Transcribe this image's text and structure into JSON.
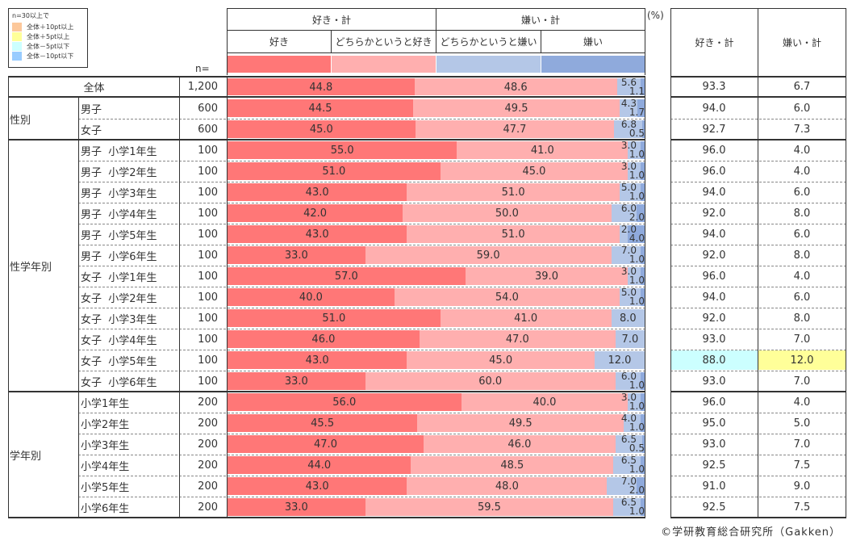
{
  "legend": {
    "title": "n=30以上で",
    "items": [
      {
        "label": "全体＋10pt以上",
        "color": "#fcc89b"
      },
      {
        "label": "全体＋5pt以上",
        "color": "#ffff99"
      },
      {
        "label": "全体－5pt以下",
        "color": "#ccffff"
      },
      {
        "label": "全体－10pt以下",
        "color": "#99ccff"
      }
    ]
  },
  "n_header": "n=",
  "unit": "(%)",
  "header": {
    "group_like": "好き・計",
    "group_dislike": "嫌い・計",
    "cols": [
      "好き",
      "どちらかというと好き",
      "どちらかというと嫌い",
      "嫌い"
    ],
    "right_cols": [
      "好き・計",
      "嫌い・計"
    ]
  },
  "colors": {
    "like": "#ff7777",
    "somewhat_like": "#ffafaf",
    "somewhat_dislike": "#b4c7e7",
    "dislike": "#8faadc",
    "highlight_minus5": "#ccffff",
    "highlight_plus5": "#ffff99"
  },
  "groups": [
    {
      "label": "",
      "rows": [
        0
      ]
    },
    {
      "label": "性別",
      "rows": [
        1,
        2
      ]
    },
    {
      "label": "性学年別",
      "rows": [
        3,
        4,
        5,
        6,
        7,
        8,
        9,
        10,
        11,
        12,
        13,
        14
      ]
    },
    {
      "label": "学年別",
      "rows": [
        15,
        16,
        17,
        18,
        19,
        20
      ]
    }
  ],
  "chart_data": {
    "type": "bar",
    "stacked": true,
    "orientation": "horizontal",
    "title": "",
    "unit": "%",
    "xlim": [
      0,
      100
    ],
    "series_names": [
      "好き",
      "どちらかというと好き",
      "どちらかというと嫌い",
      "嫌い"
    ],
    "rows": [
      {
        "label": "全体",
        "n": "1,200",
        "values": [
          44.8,
          48.6,
          5.6,
          1.1
        ],
        "like_total": "93.3",
        "dislike_total": "6.7",
        "hl_like": "",
        "hl_dislike": ""
      },
      {
        "label": "男子",
        "n": "600",
        "values": [
          44.5,
          49.5,
          4.3,
          1.7
        ],
        "like_total": "94.0",
        "dislike_total": "6.0",
        "hl_like": "",
        "hl_dislike": ""
      },
      {
        "label": "女子",
        "n": "600",
        "values": [
          45.0,
          47.7,
          6.8,
          0.5
        ],
        "like_total": "92.7",
        "dislike_total": "7.3",
        "hl_like": "",
        "hl_dislike": ""
      },
      {
        "label": "男子  小学1年生",
        "n": "100",
        "values": [
          55.0,
          41.0,
          3.0,
          1.0
        ],
        "like_total": "96.0",
        "dislike_total": "4.0",
        "hl_like": "",
        "hl_dislike": ""
      },
      {
        "label": "男子  小学2年生",
        "n": "100",
        "values": [
          51.0,
          45.0,
          3.0,
          1.0
        ],
        "like_total": "96.0",
        "dislike_total": "4.0",
        "hl_like": "",
        "hl_dislike": ""
      },
      {
        "label": "男子  小学3年生",
        "n": "100",
        "values": [
          43.0,
          51.0,
          5.0,
          1.0
        ],
        "like_total": "94.0",
        "dislike_total": "6.0",
        "hl_like": "",
        "hl_dislike": ""
      },
      {
        "label": "男子  小学4年生",
        "n": "100",
        "values": [
          42.0,
          50.0,
          6.0,
          2.0
        ],
        "like_total": "92.0",
        "dislike_total": "8.0",
        "hl_like": "",
        "hl_dislike": ""
      },
      {
        "label": "男子  小学5年生",
        "n": "100",
        "values": [
          43.0,
          51.0,
          2.0,
          4.0
        ],
        "like_total": "94.0",
        "dislike_total": "6.0",
        "hl_like": "",
        "hl_dislike": ""
      },
      {
        "label": "男子  小学6年生",
        "n": "100",
        "values": [
          33.0,
          59.0,
          7.0,
          1.0
        ],
        "like_total": "92.0",
        "dislike_total": "8.0",
        "hl_like": "",
        "hl_dislike": ""
      },
      {
        "label": "女子  小学1年生",
        "n": "100",
        "values": [
          57.0,
          39.0,
          3.0,
          1.0
        ],
        "like_total": "96.0",
        "dislike_total": "4.0",
        "hl_like": "",
        "hl_dislike": ""
      },
      {
        "label": "女子  小学2年生",
        "n": "100",
        "values": [
          40.0,
          54.0,
          5.0,
          1.0
        ],
        "like_total": "94.0",
        "dislike_total": "6.0",
        "hl_like": "",
        "hl_dislike": ""
      },
      {
        "label": "女子  小学3年生",
        "n": "100",
        "values": [
          51.0,
          41.0,
          8.0,
          0
        ],
        "like_total": "92.0",
        "dislike_total": "8.0",
        "hl_like": "",
        "hl_dislike": ""
      },
      {
        "label": "女子  小学4年生",
        "n": "100",
        "values": [
          46.0,
          47.0,
          7.0,
          0
        ],
        "like_total": "93.0",
        "dislike_total": "7.0",
        "hl_like": "",
        "hl_dislike": ""
      },
      {
        "label": "女子  小学5年生",
        "n": "100",
        "values": [
          43.0,
          45.0,
          12.0,
          0
        ],
        "like_total": "88.0",
        "dislike_total": "12.0",
        "hl_like": "#ccffff",
        "hl_dislike": "#ffff99"
      },
      {
        "label": "女子  小学6年生",
        "n": "100",
        "values": [
          33.0,
          60.0,
          6.0,
          1.0
        ],
        "like_total": "93.0",
        "dislike_total": "7.0",
        "hl_like": "",
        "hl_dislike": ""
      },
      {
        "label": "小学1年生",
        "n": "200",
        "values": [
          56.0,
          40.0,
          3.0,
          1.0
        ],
        "like_total": "96.0",
        "dislike_total": "4.0",
        "hl_like": "",
        "hl_dislike": ""
      },
      {
        "label": "小学2年生",
        "n": "200",
        "values": [
          45.5,
          49.5,
          4.0,
          1.0
        ],
        "like_total": "95.0",
        "dislike_total": "5.0",
        "hl_like": "",
        "hl_dislike": ""
      },
      {
        "label": "小学3年生",
        "n": "200",
        "values": [
          47.0,
          46.0,
          6.5,
          0.5
        ],
        "like_total": "93.0",
        "dislike_total": "7.0",
        "hl_like": "",
        "hl_dislike": ""
      },
      {
        "label": "小学4年生",
        "n": "200",
        "values": [
          44.0,
          48.5,
          6.5,
          1.0
        ],
        "like_total": "92.5",
        "dislike_total": "7.5",
        "hl_like": "",
        "hl_dislike": ""
      },
      {
        "label": "小学5年生",
        "n": "200",
        "values": [
          43.0,
          48.0,
          7.0,
          2.0
        ],
        "like_total": "91.0",
        "dislike_total": "9.0",
        "hl_like": "",
        "hl_dislike": ""
      },
      {
        "label": "小学6年生",
        "n": "200",
        "values": [
          33.0,
          59.5,
          6.5,
          1.0
        ],
        "like_total": "92.5",
        "dislike_total": "7.5",
        "hl_like": "",
        "hl_dislike": ""
      }
    ]
  },
  "credit": "©学研教育総合研究所（Gakken）"
}
